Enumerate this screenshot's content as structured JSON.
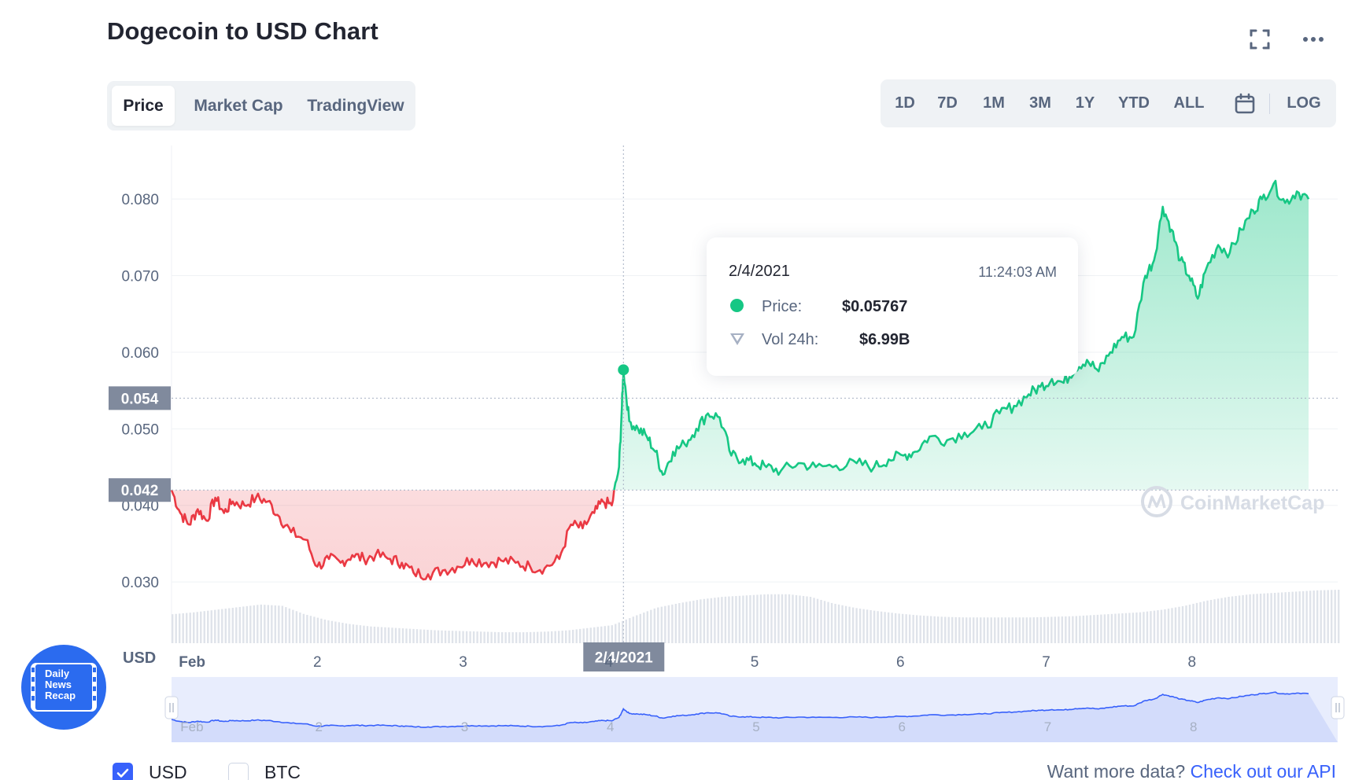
{
  "header": {
    "title": "Dogecoin to USD Chart"
  },
  "view_tabs": [
    {
      "label": "Price",
      "active": true
    },
    {
      "label": "Market Cap",
      "active": false
    },
    {
      "label": "TradingView",
      "active": false
    }
  ],
  "time_ranges": [
    "1D",
    "7D",
    "1M",
    "3M",
    "1Y",
    "YTD",
    "ALL"
  ],
  "log_label": "LOG",
  "icons": {
    "expand": "expand-icon",
    "more": "more-icon",
    "calendar": "calendar-icon"
  },
  "tooltip": {
    "date": "2/4/2021",
    "time": "11:24:03 AM",
    "price_label": "Price:",
    "price_value": "$0.05767",
    "vol_label": "Vol 24h:",
    "vol_value": "$6.99B"
  },
  "crosshair": {
    "date_label": "2/4/2021",
    "price_marker": "0.054",
    "baseline_marker": "0.042"
  },
  "currency_label": "USD",
  "watermark": "CoinMarketCap",
  "logo_text": [
    "Daily",
    "News",
    "Recap"
  ],
  "currency_toggles": [
    {
      "label": "USD",
      "checked": true
    },
    {
      "label": "BTC",
      "checked": false
    }
  ],
  "footer": {
    "prefix": "Want more data?",
    "link": "Check out our API"
  },
  "colors": {
    "up": "#16c784",
    "down": "#ea3943",
    "accent": "#3861fb",
    "badge": "#2b6bef"
  },
  "chart_data": {
    "type": "line",
    "title": "Dogecoin to USD Chart",
    "ylabel": "USD",
    "ylim": [
      0.022,
      0.087
    ],
    "y_ticks": [
      0.03,
      0.04,
      0.05,
      0.06,
      0.07,
      0.08
    ],
    "x_range": [
      1.0,
      9.0
    ],
    "x_ticks": [
      {
        "value": 1.05,
        "label": "Feb"
      },
      {
        "value": 2,
        "label": "2"
      },
      {
        "value": 3,
        "label": "3"
      },
      {
        "value": 4,
        "label": "4"
      },
      {
        "value": 5,
        "label": "5"
      },
      {
        "value": 6,
        "label": "6"
      },
      {
        "value": 7,
        "label": "7"
      },
      {
        "value": 8,
        "label": "8"
      }
    ],
    "baseline": 0.042,
    "grid": true,
    "series": [
      {
        "points": [
          [
            1.0,
            0.042
          ],
          [
            1.06,
            0.039
          ],
          [
            1.12,
            0.0375
          ],
          [
            1.18,
            0.0395
          ],
          [
            1.24,
            0.038
          ],
          [
            1.3,
            0.041
          ],
          [
            1.36,
            0.039
          ],
          [
            1.42,
            0.0405
          ],
          [
            1.5,
            0.04
          ],
          [
            1.58,
            0.041
          ],
          [
            1.66,
            0.0405
          ],
          [
            1.74,
            0.0385
          ],
          [
            1.82,
            0.0365
          ],
          [
            1.92,
            0.0355
          ],
          [
            2.0,
            0.032
          ],
          [
            2.08,
            0.033
          ],
          [
            2.16,
            0.0325
          ],
          [
            2.24,
            0.0335
          ],
          [
            2.32,
            0.033
          ],
          [
            2.4,
            0.0335
          ],
          [
            2.5,
            0.033
          ],
          [
            2.58,
            0.0325
          ],
          [
            2.66,
            0.0312
          ],
          [
            2.76,
            0.031
          ],
          [
            2.86,
            0.0315
          ],
          [
            2.96,
            0.032
          ],
          [
            3.06,
            0.033
          ],
          [
            3.16,
            0.0325
          ],
          [
            3.26,
            0.0328
          ],
          [
            3.36,
            0.0325
          ],
          [
            3.46,
            0.032
          ],
          [
            3.56,
            0.0318
          ],
          [
            3.66,
            0.033
          ],
          [
            3.74,
            0.0375
          ],
          [
            3.82,
            0.037
          ],
          [
            3.9,
            0.039
          ],
          [
            3.96,
            0.0405
          ],
          [
            4.02,
            0.04
          ],
          [
            4.07,
            0.045
          ],
          [
            4.09,
            0.053
          ],
          [
            4.1,
            0.0577
          ],
          [
            4.14,
            0.051
          ],
          [
            4.2,
            0.05
          ],
          [
            4.26,
            0.049
          ],
          [
            4.32,
            0.047
          ],
          [
            4.37,
            0.044
          ],
          [
            4.44,
            0.047
          ],
          [
            4.52,
            0.048
          ],
          [
            4.6,
            0.05
          ],
          [
            4.68,
            0.052
          ],
          [
            4.76,
            0.0515
          ],
          [
            4.84,
            0.0465
          ],
          [
            4.92,
            0.046
          ],
          [
            5.0,
            0.0455
          ],
          [
            5.08,
            0.045
          ],
          [
            5.18,
            0.0445
          ],
          [
            5.3,
            0.0455
          ],
          [
            5.42,
            0.045
          ],
          [
            5.56,
            0.0452
          ],
          [
            5.7,
            0.0455
          ],
          [
            5.82,
            0.045
          ],
          [
            5.92,
            0.046
          ],
          [
            6.02,
            0.0465
          ],
          [
            6.1,
            0.047
          ],
          [
            6.2,
            0.049
          ],
          [
            6.32,
            0.0485
          ],
          [
            6.44,
            0.0495
          ],
          [
            6.56,
            0.05
          ],
          [
            6.68,
            0.052
          ],
          [
            6.78,
            0.053
          ],
          [
            6.88,
            0.0545
          ],
          [
            6.96,
            0.0555
          ],
          [
            7.04,
            0.0565
          ],
          [
            7.12,
            0.056
          ],
          [
            7.2,
            0.058
          ],
          [
            7.28,
            0.059
          ],
          [
            7.36,
            0.0575
          ],
          [
            7.44,
            0.06
          ],
          [
            7.52,
            0.062
          ],
          [
            7.6,
            0.062
          ],
          [
            7.68,
            0.07
          ],
          [
            7.74,
            0.072
          ],
          [
            7.8,
            0.079
          ],
          [
            7.86,
            0.076
          ],
          [
            7.92,
            0.072
          ],
          [
            7.98,
            0.07
          ],
          [
            8.04,
            0.067
          ],
          [
            8.1,
            0.071
          ],
          [
            8.18,
            0.074
          ],
          [
            8.26,
            0.073
          ],
          [
            8.34,
            0.076
          ],
          [
            8.42,
            0.0785
          ],
          [
            8.48,
            0.08
          ],
          [
            8.56,
            0.082
          ],
          [
            8.64,
            0.0795
          ],
          [
            8.72,
            0.081
          ],
          [
            8.8,
            0.08
          ]
        ]
      }
    ],
    "volume": {
      "relative_levels": [
        0.45,
        0.48,
        0.52,
        0.56,
        0.6,
        0.58,
        0.45,
        0.36,
        0.3,
        0.26,
        0.24,
        0.22,
        0.2,
        0.19,
        0.18,
        0.17,
        0.17,
        0.18,
        0.2,
        0.24,
        0.28,
        0.42,
        0.55,
        0.62,
        0.68,
        0.72,
        0.74,
        0.76,
        0.76,
        0.72,
        0.62,
        0.55,
        0.5,
        0.46,
        0.43,
        0.41,
        0.4,
        0.4,
        0.4,
        0.4,
        0.41,
        0.42,
        0.44,
        0.46,
        0.48,
        0.52,
        0.58,
        0.66,
        0.72,
        0.76,
        0.78,
        0.8,
        0.82,
        0.83
      ]
    },
    "navigator": {
      "x_ticks": [
        "Feb",
        "2",
        "3",
        "4",
        "5",
        "6",
        "7",
        "8"
      ]
    }
  }
}
